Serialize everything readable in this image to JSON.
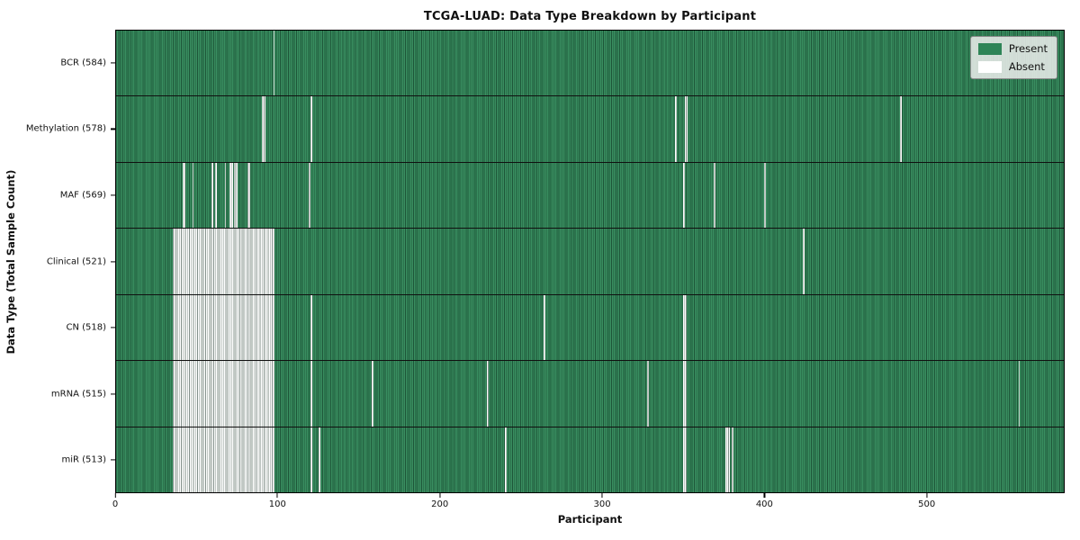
{
  "title": "TCGA-LUAD: Data Type Breakdown by Participant",
  "xlabel": "Participant",
  "ylabel": "Data Type (Total Sample Count)",
  "legend": {
    "present_label": "Present",
    "absent_label": "Absent"
  },
  "colors": {
    "present": "#2e8457",
    "absent": "#ffffff",
    "row_divider": "#101010",
    "legend_bg": "#e8ece8",
    "legend_border": "#8a8a8a"
  },
  "chart_data": {
    "type": "heatmap",
    "title": "TCGA-LUAD: Data Type Breakdown by Participant",
    "xlabel": "Participant",
    "ylabel": "Data Type (Total Sample Count)",
    "legend_entries": [
      "Present",
      "Absent"
    ],
    "legend_position": "upper right",
    "grid": false,
    "n_participants": 585,
    "x_ticks": [
      0,
      100,
      200,
      300,
      400,
      500
    ],
    "x_range": [
      0,
      585
    ],
    "cell_values": "present=1, absent=0",
    "rows": [
      {
        "data_type": "BCR",
        "count": 584,
        "label": "BCR (584)",
        "absent_ranges": [
          [
            97,
            97
          ]
        ]
      },
      {
        "data_type": "Methylation",
        "count": 578,
        "label": "Methylation (578)",
        "absent_ranges": [
          [
            90,
            91
          ],
          [
            120,
            120
          ],
          [
            345,
            345
          ],
          [
            351,
            352
          ],
          [
            484,
            484
          ]
        ]
      },
      {
        "data_type": "MAF",
        "count": 569,
        "label": "MAF (569)",
        "absent_ranges": [
          [
            41,
            42
          ],
          [
            47,
            47
          ],
          [
            59,
            59
          ],
          [
            61,
            61
          ],
          [
            67,
            67
          ],
          [
            70,
            71
          ],
          [
            73,
            74
          ],
          [
            81,
            82
          ],
          [
            119,
            119
          ],
          [
            350,
            350
          ],
          [
            369,
            369
          ],
          [
            400,
            400
          ]
        ]
      },
      {
        "data_type": "Clinical",
        "count": 521,
        "label": "Clinical (521)",
        "absent_ranges": [
          [
            35,
            97
          ],
          [
            424,
            424
          ]
        ]
      },
      {
        "data_type": "CN",
        "count": 518,
        "label": "CN (518)",
        "absent_ranges": [
          [
            35,
            97
          ],
          [
            120,
            120
          ],
          [
            264,
            264
          ],
          [
            350,
            351
          ]
        ]
      },
      {
        "data_type": "mRNA",
        "count": 515,
        "label": "mRNA (515)",
        "absent_ranges": [
          [
            35,
            97
          ],
          [
            120,
            120
          ],
          [
            158,
            158
          ],
          [
            229,
            229
          ],
          [
            328,
            328
          ],
          [
            350,
            351
          ],
          [
            557,
            557
          ]
        ]
      },
      {
        "data_type": "miR",
        "count": 513,
        "label": "miR (513)",
        "absent_ranges": [
          [
            35,
            97
          ],
          [
            120,
            120
          ],
          [
            125,
            125
          ],
          [
            240,
            240
          ],
          [
            350,
            351
          ],
          [
            376,
            378
          ],
          [
            380,
            380
          ]
        ]
      }
    ]
  }
}
